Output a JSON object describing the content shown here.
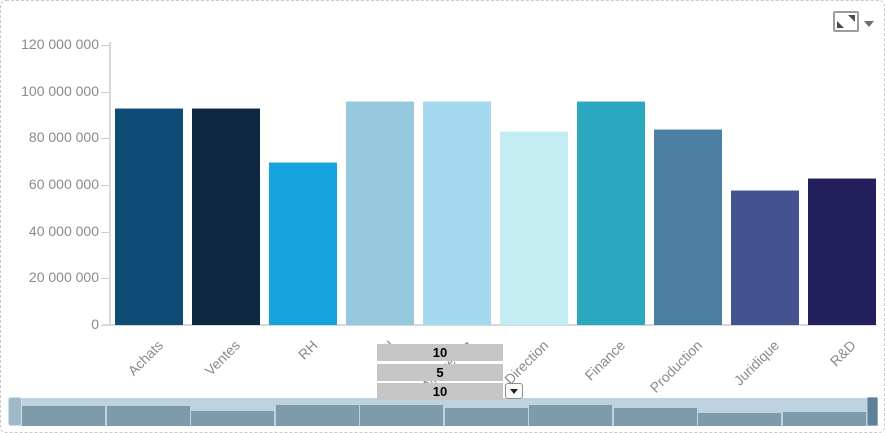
{
  "toolbar": {
    "export_button": {
      "icon": "expand-icon"
    },
    "menu_button": {
      "icon": "caret-down-icon"
    }
  },
  "overlay_select": {
    "options": [
      "10",
      "5",
      "10"
    ],
    "selected": "10",
    "arrow_icon": "caret-down-icon"
  },
  "chart_data": {
    "type": "bar",
    "title": "",
    "xlabel": "",
    "ylabel": "",
    "categories": [
      "Achats",
      "Ventes",
      "RH",
      "SI",
      "Marketing",
      "Direction",
      "Finance",
      "Production",
      "Juridique",
      "R&D"
    ],
    "values": [
      93000000,
      93000000,
      70000000,
      96000000,
      96000000,
      83000000,
      96000000,
      84000000,
      58000000,
      63000000
    ],
    "bar_colors": [
      "#0e4c75",
      "#0d2840",
      "#17a3dd",
      "#96c9de",
      "#a5d9ef",
      "#c4edf3",
      "#2ba7bf",
      "#4d7fa5",
      "#42538f",
      "#221f5c"
    ],
    "ylim": [
      0,
      120000000
    ],
    "ytick_step": 20000000,
    "ytick_labels": [
      "0",
      "20 000 000",
      "40 000 000",
      "60 000 000",
      "80 000 000",
      "100 000 000",
      "120 000 000"
    ],
    "x_label_rotation": -45,
    "legend": "none",
    "gridlines": false,
    "axis_text_color": "#8a8a8a"
  },
  "scrollbar": {
    "preview_values": [
      93000000,
      93000000,
      70000000,
      96000000,
      96000000,
      83000000,
      96000000,
      84000000,
      58000000,
      63000000
    ],
    "track_color": "#bed3df",
    "bar_color": "#7e9bab",
    "left_grip_color": "#9fb9c9",
    "right_grip_color": "#5d8199"
  }
}
